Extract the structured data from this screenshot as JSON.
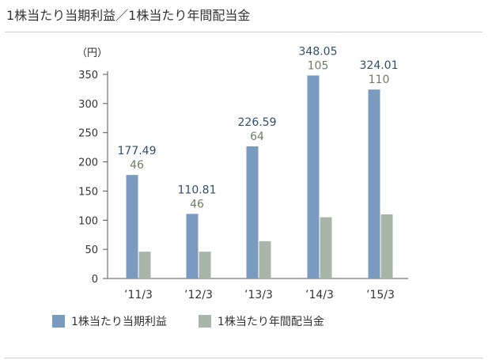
{
  "header": {
    "title": "1株当たり当期利益／1株当たり年間配当金"
  },
  "chart_data": {
    "type": "bar",
    "unit_label": "（円）",
    "categories": [
      "’11/3",
      "’12/3",
      "’13/3",
      "’14/3",
      "’15/3"
    ],
    "series": [
      {
        "name": "1株当たり当期利益",
        "values": [
          177.49,
          110.81,
          226.59,
          348.05,
          324.01
        ],
        "labels": [
          "177.49",
          "110.81",
          "226.59",
          "348.05",
          "324.01"
        ],
        "color": "#7b9ac0",
        "label_color": "#2f4f6f"
      },
      {
        "name": "1株当たり年間配当金",
        "values": [
          46,
          46,
          64,
          105,
          110
        ],
        "labels": [
          "46",
          "46",
          "64",
          "105",
          "110"
        ],
        "color": "#a9b5a8",
        "label_color": "#6f7d62"
      }
    ],
    "ylim": [
      0,
      350
    ],
    "yticks": [
      0,
      50,
      100,
      150,
      200,
      250,
      300,
      350
    ],
    "grid": false,
    "legend_position": "bottom-left"
  }
}
